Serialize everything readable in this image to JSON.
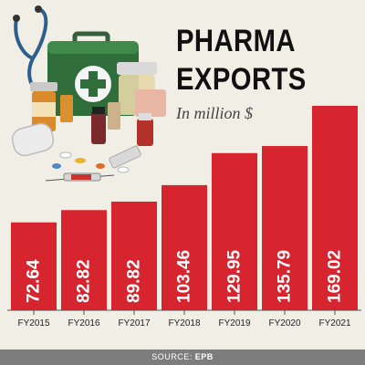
{
  "header": {
    "title_line1": "PHARMA",
    "title_line2": "EXPORTS",
    "subtitle": "In million $"
  },
  "source": {
    "label": "SOURCE:",
    "value": "EPB"
  },
  "colors": {
    "bar": "#d6252f",
    "background": "#f1eee6",
    "source_bar": "#7d7d7d"
  },
  "chart_data": {
    "type": "bar",
    "title": "PHARMA EXPORTS",
    "subtitle": "In million $",
    "categories": [
      "FY2015",
      "FY2016",
      "FY2017",
      "FY2018",
      "FY2019",
      "FY2020",
      "FY2021"
    ],
    "values": [
      72.64,
      82.82,
      89.82,
      103.46,
      129.95,
      135.79,
      169.02
    ],
    "value_labels": [
      "72.64",
      "82.82",
      "89.82",
      "103.46",
      "129.95",
      "135.79",
      "169.02"
    ],
    "ylim": [
      0,
      190
    ],
    "grid": false,
    "legend": "none",
    "data_labels": "inside-vertical"
  },
  "illustration": {
    "icons": [
      "first-aid-kit-icon",
      "stethoscope-icon",
      "pill-bottle-icon",
      "syringe-icon",
      "pills-icon"
    ]
  }
}
